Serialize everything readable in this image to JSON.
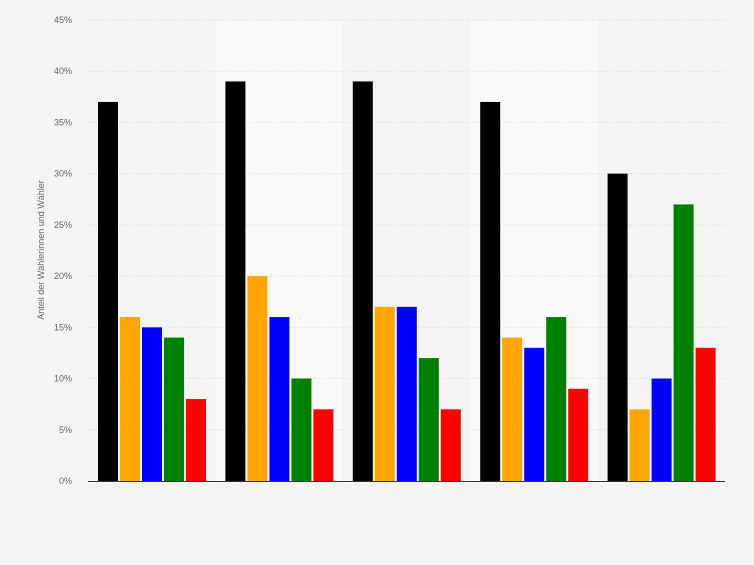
{
  "chart_data": {
    "type": "bar",
    "title": "",
    "xlabel": "",
    "ylabel": "Anteil der Wählerinnen und Wähler",
    "ylim": [
      0,
      45
    ],
    "yticks": [
      0,
      5,
      10,
      15,
      20,
      25,
      30,
      35,
      40,
      45
    ],
    "ytick_labels": [
      "0%",
      "5%",
      "10%",
      "15%",
      "20%",
      "25%",
      "30%",
      "35%",
      "40%",
      "45%"
    ],
    "grid": true,
    "legend": "none",
    "categories": [
      "",
      "",
      "",
      "",
      ""
    ],
    "series": [
      {
        "color": "#000000",
        "values": [
          37,
          39,
          39,
          37,
          30
        ]
      },
      {
        "color": "#ffa500",
        "values": [
          16,
          20,
          17,
          14,
          7
        ]
      },
      {
        "color": "#0000ff",
        "values": [
          15,
          16,
          17,
          13,
          10
        ]
      },
      {
        "color": "#008000",
        "values": [
          14,
          10,
          12,
          16,
          27
        ]
      },
      {
        "color": "#ff0000",
        "values": [
          8,
          7,
          7,
          9,
          13
        ]
      }
    ],
    "colors": {
      "background": "#f4f4f4",
      "band_light": "#f9f9f9",
      "grid": "#d8d8d8",
      "axis": "#333333",
      "tick_text": "#666666"
    }
  }
}
